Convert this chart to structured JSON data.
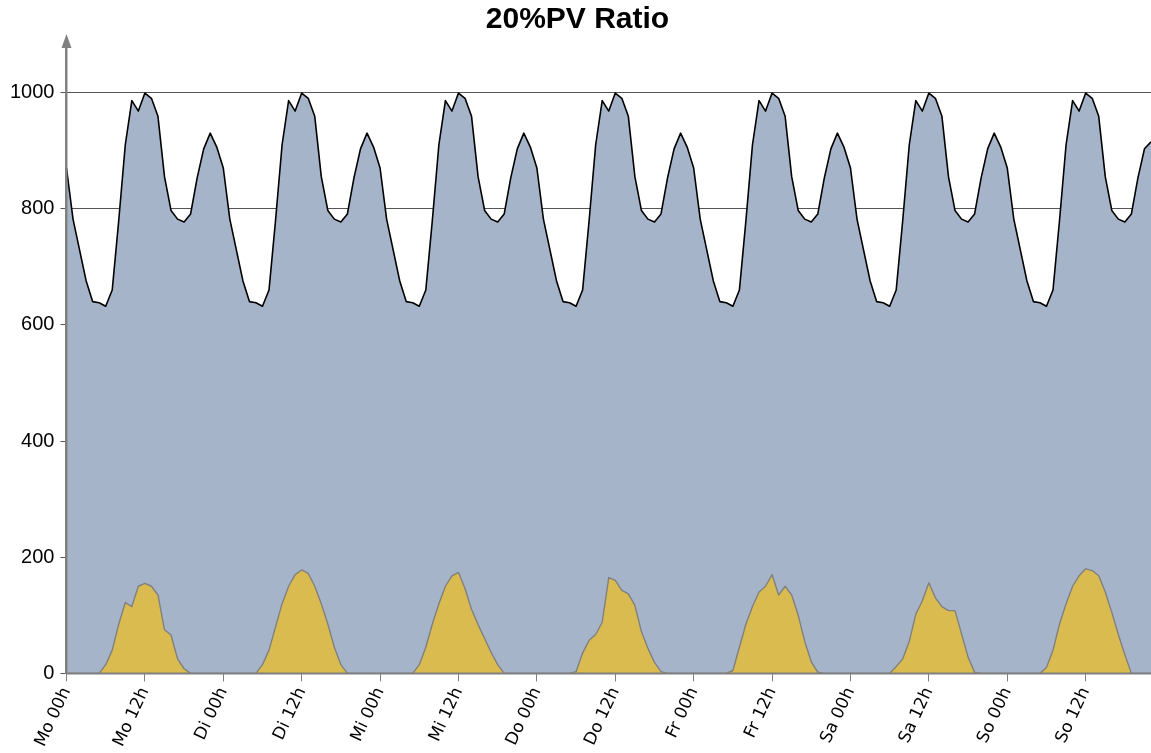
{
  "chart_data": {
    "type": "area",
    "title": "20%PV Ratio",
    "ylim": [
      0,
      1080
    ],
    "categories": [
      "Mo 00h",
      null,
      null,
      null,
      null,
      null,
      null,
      null,
      null,
      null,
      null,
      null,
      "Mo 12h",
      null,
      null,
      null,
      null,
      null,
      null,
      null,
      null,
      null,
      null,
      null,
      "Di 00h",
      null,
      null,
      null,
      null,
      null,
      null,
      null,
      null,
      null,
      null,
      null,
      "Di 12h",
      null,
      null,
      null,
      null,
      null,
      null,
      null,
      null,
      null,
      null,
      null,
      "Mi 00h",
      null,
      null,
      null,
      null,
      null,
      null,
      null,
      null,
      null,
      null,
      null,
      "Mi 12h",
      null,
      null,
      null,
      null,
      null,
      null,
      null,
      null,
      null,
      null,
      null,
      "Do 00h",
      null,
      null,
      null,
      null,
      null,
      null,
      null,
      null,
      null,
      null,
      null,
      "Do 12h",
      null,
      null,
      null,
      null,
      null,
      null,
      null,
      null,
      null,
      null,
      null,
      "Fr 00h",
      null,
      null,
      null,
      null,
      null,
      null,
      null,
      null,
      null,
      null,
      null,
      "Fr 12h",
      null,
      null,
      null,
      null,
      null,
      null,
      null,
      null,
      null,
      null,
      null,
      "Sa 00h",
      null,
      null,
      null,
      null,
      null,
      null,
      null,
      null,
      null,
      null,
      null,
      "Sa 12h",
      null,
      null,
      null,
      null,
      null,
      null,
      null,
      null,
      null,
      null,
      null,
      "So 00h",
      null,
      null,
      null,
      null,
      null,
      null,
      null,
      null,
      null,
      null,
      null,
      "So 12h",
      null,
      null,
      null,
      null,
      null,
      null,
      null,
      null,
      null,
      null
    ],
    "yticks": [
      0,
      200,
      400,
      600,
      800,
      1000
    ],
    "grid": "y",
    "legend": false,
    "marker": "none",
    "series": [
      {
        "color": "#a5b4c9",
        "values": [
          870,
          782,
          729,
          676,
          640,
          638,
          632,
          660,
          780,
          910,
          986,
          968,
          999,
          990,
          959,
          855,
          797,
          782,
          777,
          791,
          853,
          903,
          930,
          906,
          870,
          782,
          729,
          676,
          640,
          638,
          632,
          660,
          780,
          910,
          986,
          968,
          999,
          990,
          959,
          855,
          797,
          782,
          777,
          791,
          853,
          903,
          930,
          906,
          870,
          782,
          729,
          676,
          640,
          638,
          632,
          660,
          780,
          910,
          986,
          968,
          999,
          990,
          959,
          855,
          797,
          782,
          777,
          791,
          853,
          903,
          930,
          906,
          870,
          782,
          729,
          676,
          640,
          638,
          632,
          660,
          780,
          910,
          986,
          968,
          999,
          990,
          959,
          855,
          797,
          782,
          777,
          791,
          853,
          903,
          930,
          906,
          870,
          782,
          729,
          676,
          640,
          638,
          632,
          660,
          780,
          910,
          986,
          968,
          999,
          990,
          959,
          855,
          797,
          782,
          777,
          791,
          853,
          903,
          930,
          906,
          870,
          782,
          729,
          676,
          640,
          638,
          632,
          660,
          780,
          910,
          986,
          968,
          999,
          990,
          959,
          855,
          797,
          782,
          777,
          791,
          853,
          903,
          930,
          906,
          870,
          782,
          729,
          676,
          640,
          638,
          632,
          660,
          780,
          910,
          986,
          968,
          999,
          990,
          959,
          855,
          797,
          782,
          777,
          791,
          853,
          903,
          915
        ]
      },
      {
        "color": "#d9bb4f",
        "values": [
          0,
          0,
          0,
          0,
          0,
          0,
          15,
          40,
          85,
          122,
          115,
          150,
          155,
          150,
          135,
          75,
          66,
          25,
          8,
          0,
          0,
          0,
          0,
          0,
          0,
          0,
          0,
          0,
          0,
          0,
          15,
          40,
          80,
          120,
          150,
          170,
          178,
          172,
          150,
          120,
          85,
          45,
          15,
          0,
          0,
          0,
          0,
          0,
          0,
          0,
          0,
          0,
          0,
          0,
          15,
          45,
          85,
          120,
          150,
          168,
          174,
          146,
          110,
          84,
          60,
          36,
          15,
          0,
          0,
          0,
          0,
          0,
          0,
          0,
          0,
          0,
          0,
          0,
          3,
          35,
          57,
          67,
          88,
          165,
          160,
          143,
          137,
          117,
          72,
          43,
          19,
          3,
          0,
          0,
          0,
          0,
          0,
          0,
          0,
          0,
          0,
          0,
          5,
          45,
          85,
          115,
          140,
          150,
          170,
          135,
          150,
          135,
          100,
          55,
          20,
          2,
          0,
          0,
          0,
          0,
          0,
          0,
          0,
          0,
          0,
          0,
          0,
          12,
          25,
          55,
          102,
          125,
          156,
          130,
          115,
          108,
          108,
          68,
          28,
          2,
          0,
          0,
          0,
          0,
          0,
          0,
          0,
          0,
          0,
          0,
          10,
          40,
          85,
          120,
          150,
          168,
          180,
          177,
          168,
          140,
          105,
          67,
          32,
          0,
          0,
          0,
          0
        ]
      }
    ]
  }
}
